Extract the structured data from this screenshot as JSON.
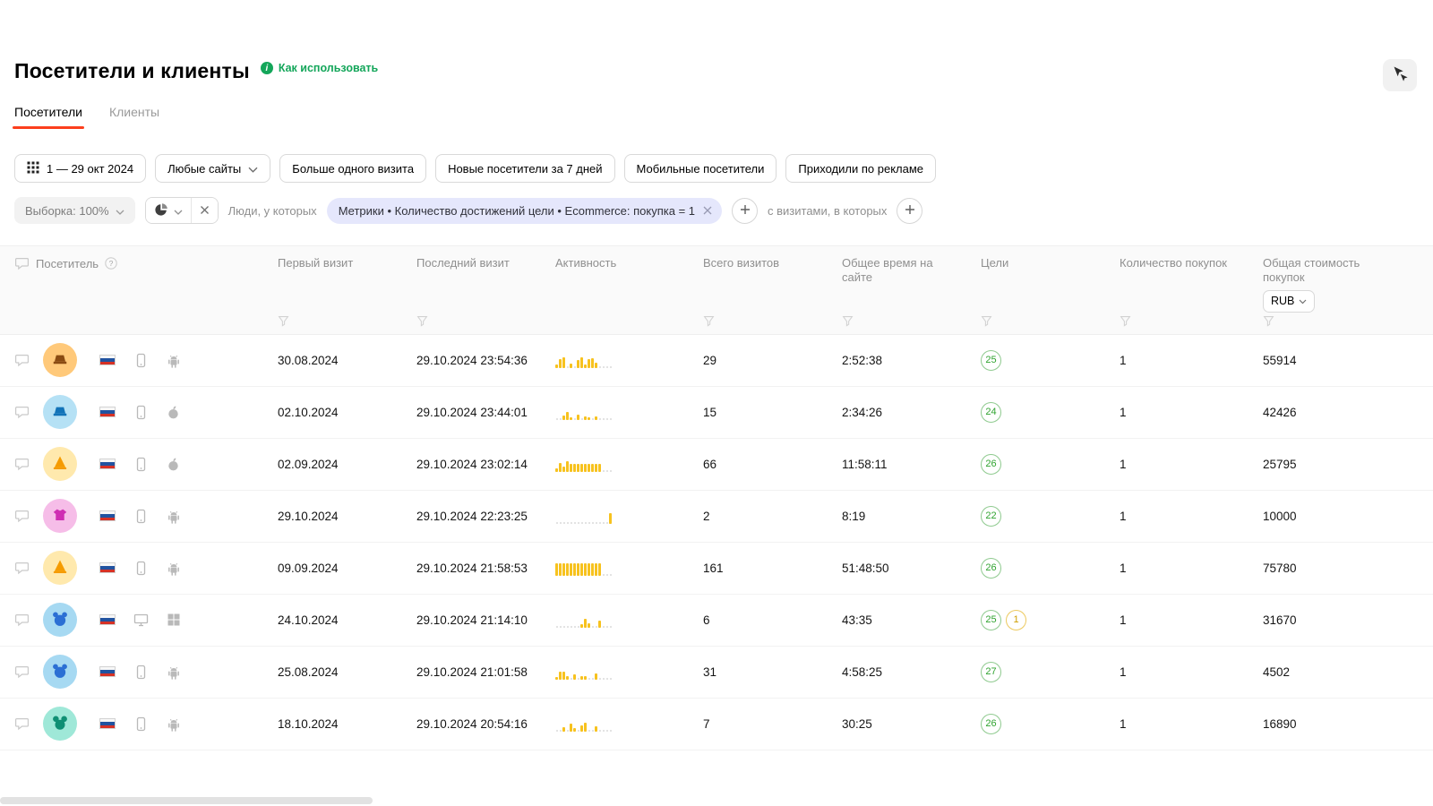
{
  "colors": {
    "accent_red": "#fc3f1d",
    "link_green": "#14a65a",
    "bar_yellow": "#f7c21e",
    "chip_bg": "#e5e7fc",
    "badge_green": "#2fa32f",
    "badge_yellow": "#cf9f00"
  },
  "page": {
    "title": "Посетители и клиенты",
    "help_link": "Как использовать"
  },
  "tabs": [
    {
      "label": "Посетители"
    },
    {
      "label": "Клиенты"
    }
  ],
  "filters": {
    "date_range": "1 — 29 окт 2024",
    "sites_label": "Любые сайты",
    "quick": [
      "Больше одного визита",
      "Новые посетители за 7 дней",
      "Мобильные посетители",
      "Приходили по рекламе"
    ],
    "sampling": "Выборка: 100%",
    "people_label": "Люди, у которых",
    "chip": "Метрики • Количество достижений цели • Ecommerce: покупка = 1",
    "visits_label": "с визитами, в которых"
  },
  "table": {
    "columns": {
      "visitor": "Посетитель",
      "first_visit": "Первый визит",
      "last_visit": "Последний визит",
      "activity": "Активность",
      "visits": "Всего визитов",
      "total_time": "Общее время на сайте",
      "goals": "Цели",
      "purchases": "Количество покупок",
      "revenue": "Общая стоимость покупок",
      "currency": "RUB"
    },
    "rows": [
      {
        "avatar": {
          "bg": "#ffc97a",
          "fg": "#8a4b12",
          "icon": "hat"
        },
        "flag": "ru",
        "device": "phone",
        "os": "android",
        "first_visit": "30.08.2024",
        "last_visit": "29.10.2024 23:54:36",
        "activity": [
          4,
          10,
          12,
          0,
          5,
          0,
          9,
          12,
          4,
          10,
          11,
          6,
          0,
          0,
          0,
          0
        ],
        "visits": "29",
        "total_time": "2:52:38",
        "goals": [
          {
            "value": "25",
            "color": "green"
          }
        ],
        "purchases": "1",
        "revenue": "55914"
      },
      {
        "avatar": {
          "bg": "#b5e1f5",
          "fg": "#1273b8",
          "icon": "hat"
        },
        "flag": "ru",
        "device": "phone",
        "os": "apple",
        "first_visit": "02.10.2024",
        "last_visit": "29.10.2024 23:44:01",
        "activity": [
          0,
          0,
          5,
          9,
          3,
          0,
          6,
          0,
          4,
          3,
          0,
          4,
          0,
          0,
          0,
          0
        ],
        "visits": "15",
        "total_time": "2:34:26",
        "goals": [
          {
            "value": "24",
            "color": "green"
          }
        ],
        "purchases": "1",
        "revenue": "42426"
      },
      {
        "avatar": {
          "bg": "#ffe9ad",
          "fg": "#f59b00",
          "icon": "cone"
        },
        "flag": "ru",
        "device": "phone",
        "os": "apple",
        "first_visit": "02.09.2024",
        "last_visit": "29.10.2024 23:02:14",
        "activity": [
          4,
          10,
          6,
          12,
          9,
          9,
          9,
          9,
          9,
          9,
          9,
          9,
          9,
          0,
          0,
          0
        ],
        "visits": "66",
        "total_time": "11:58:11",
        "goals": [
          {
            "value": "26",
            "color": "green"
          }
        ],
        "purchases": "1",
        "revenue": "25795"
      },
      {
        "avatar": {
          "bg": "#f6bde8",
          "fg": "#cf2fb3",
          "icon": "shirt"
        },
        "flag": "ru",
        "device": "phone",
        "os": "android",
        "first_visit": "29.10.2024",
        "last_visit": "29.10.2024 22:23:25",
        "activity": [
          0,
          0,
          0,
          0,
          0,
          0,
          0,
          0,
          0,
          0,
          0,
          0,
          0,
          0,
          0,
          12
        ],
        "visits": "2",
        "total_time": "8:19",
        "goals": [
          {
            "value": "22",
            "color": "green"
          }
        ],
        "purchases": "1",
        "revenue": "10000"
      },
      {
        "avatar": {
          "bg": "#ffe9ad",
          "fg": "#f59b00",
          "icon": "cone"
        },
        "flag": "ru",
        "device": "phone",
        "os": "android",
        "first_visit": "09.09.2024",
        "last_visit": "29.10.2024 21:58:53",
        "activity": [
          14,
          14,
          14,
          14,
          14,
          14,
          14,
          14,
          14,
          14,
          14,
          14,
          14,
          0,
          0,
          0
        ],
        "visits": "161",
        "total_time": "51:48:50",
        "goals": [
          {
            "value": "26",
            "color": "green"
          }
        ],
        "purchases": "1",
        "revenue": "75780"
      },
      {
        "avatar": {
          "bg": "#a6d9f2",
          "fg": "#2b6fd4",
          "icon": "face"
        },
        "flag": "ru",
        "device": "desktop",
        "os": "windows",
        "first_visit": "24.10.2024",
        "last_visit": "29.10.2024 21:14:10",
        "activity": [
          0,
          0,
          0,
          0,
          0,
          0,
          0,
          4,
          10,
          5,
          0,
          0,
          8,
          0,
          0,
          0
        ],
        "visits": "6",
        "total_time": "43:35",
        "goals": [
          {
            "value": "25",
            "color": "green"
          },
          {
            "value": "1",
            "color": "yellow"
          }
        ],
        "purchases": "1",
        "revenue": "31670"
      },
      {
        "avatar": {
          "bg": "#a6d9f2",
          "fg": "#2b6fd4",
          "icon": "face"
        },
        "flag": "ru",
        "device": "phone",
        "os": "android",
        "first_visit": "25.08.2024",
        "last_visit": "29.10.2024 21:01:58",
        "activity": [
          3,
          9,
          9,
          4,
          0,
          6,
          0,
          4,
          4,
          0,
          0,
          7,
          0,
          0,
          0,
          0
        ],
        "visits": "31",
        "total_time": "4:58:25",
        "goals": [
          {
            "value": "27",
            "color": "green"
          }
        ],
        "purchases": "1",
        "revenue": "4502"
      },
      {
        "avatar": {
          "bg": "#9fe8d8",
          "fg": "#0f8f74",
          "icon": "mouse"
        },
        "flag": "ru",
        "device": "phone",
        "os": "android",
        "first_visit": "18.10.2024",
        "last_visit": "29.10.2024 20:54:16",
        "activity": [
          0,
          0,
          5,
          0,
          9,
          4,
          0,
          7,
          10,
          0,
          0,
          6,
          0,
          0,
          0,
          0
        ],
        "visits": "7",
        "total_time": "30:25",
        "goals": [
          {
            "value": "26",
            "color": "green"
          }
        ],
        "purchases": "1",
        "revenue": "16890"
      }
    ]
  }
}
